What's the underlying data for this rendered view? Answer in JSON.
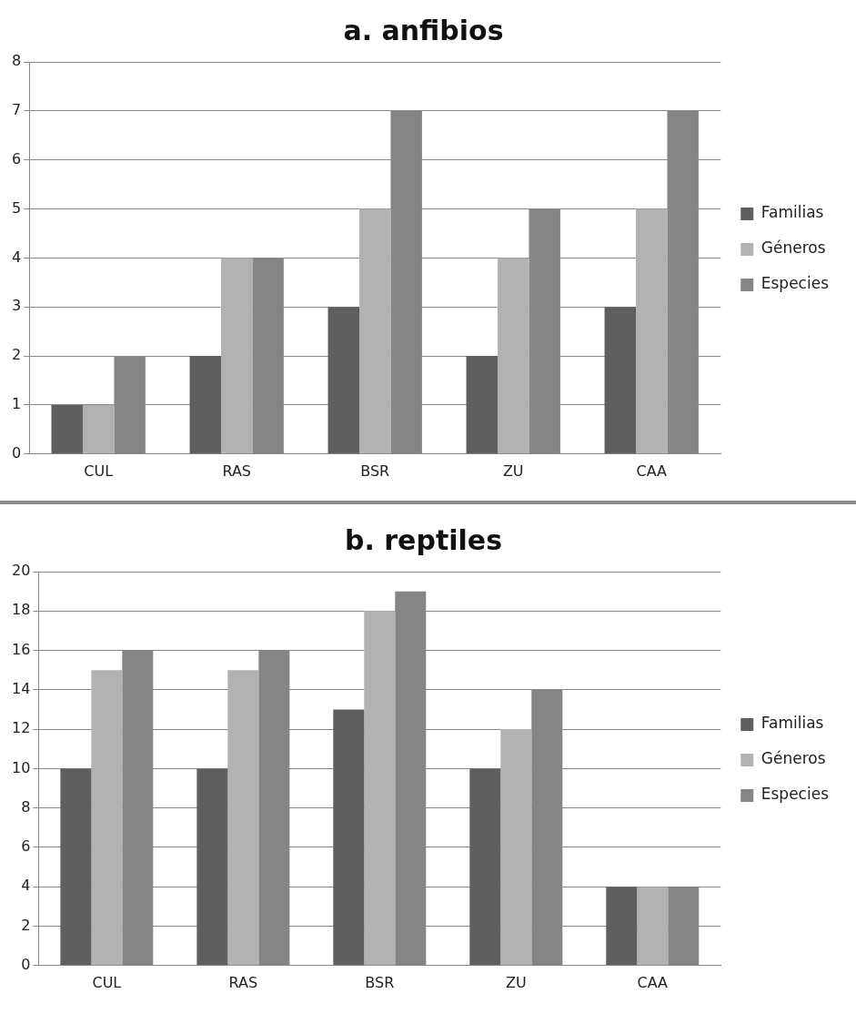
{
  "chart_data": [
    {
      "type": "bar",
      "title": "a. anfibios",
      "categories": [
        "CUL",
        "RAS",
        "BSR",
        "ZU",
        "CAA"
      ],
      "series": [
        {
          "name": "Familias",
          "color": "#5f5f5f",
          "values": [
            1,
            2,
            3,
            2,
            3
          ]
        },
        {
          "name": "Géneros",
          "color": "#b2b2b2",
          "values": [
            1,
            4,
            5,
            4,
            5
          ]
        },
        {
          "name": "Especies",
          "color": "#858585",
          "values": [
            2,
            4,
            7,
            5,
            7
          ]
        }
      ],
      "ylim": [
        0,
        8
      ],
      "yticks": [
        0,
        1,
        2,
        3,
        4,
        5,
        6,
        7,
        8
      ],
      "grid": "y",
      "legend": "right"
    },
    {
      "type": "bar",
      "title": "b. reptiles",
      "categories": [
        "CUL",
        "RAS",
        "BSR",
        "ZU",
        "CAA"
      ],
      "series": [
        {
          "name": "Familias",
          "color": "#5f5f5f",
          "values": [
            10,
            10,
            13,
            10,
            4
          ]
        },
        {
          "name": "Géneros",
          "color": "#b2b2b2",
          "values": [
            15,
            15,
            18,
            12,
            4
          ]
        },
        {
          "name": "Especies",
          "color": "#858585",
          "values": [
            16,
            16,
            19,
            14,
            4
          ]
        }
      ],
      "ylim": [
        0,
        20
      ],
      "yticks": [
        0,
        2,
        4,
        6,
        8,
        10,
        12,
        14,
        16,
        18,
        20
      ],
      "grid": "y",
      "legend": "right"
    }
  ]
}
